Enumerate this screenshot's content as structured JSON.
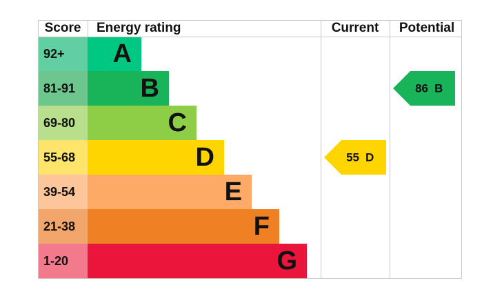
{
  "headers": [
    "Score",
    "Energy rating",
    "Current",
    "Potential"
  ],
  "bands": [
    {
      "score": "92+",
      "letter": "A",
      "color": "#00c781",
      "light": "#62cfa2"
    },
    {
      "score": "81-91",
      "letter": "B",
      "color": "#19b459",
      "light": "#6cc78f"
    },
    {
      "score": "69-80",
      "letter": "C",
      "color": "#8dce46",
      "light": "#b8df8b"
    },
    {
      "score": "55-68",
      "letter": "D",
      "color": "#ffd500",
      "light": "#fde46b"
    },
    {
      "score": "39-54",
      "letter": "E",
      "color": "#fcaa65",
      "light": "#fcc69a"
    },
    {
      "score": "21-38",
      "letter": "F",
      "color": "#ef8023",
      "light": "#f3a66b"
    },
    {
      "score": "1-20",
      "letter": "G",
      "color": "#e9153b",
      "light": "#f37a8d"
    }
  ],
  "current": {
    "value": 55,
    "letter": "D"
  },
  "potential": {
    "value": 86,
    "letter": "B"
  }
}
